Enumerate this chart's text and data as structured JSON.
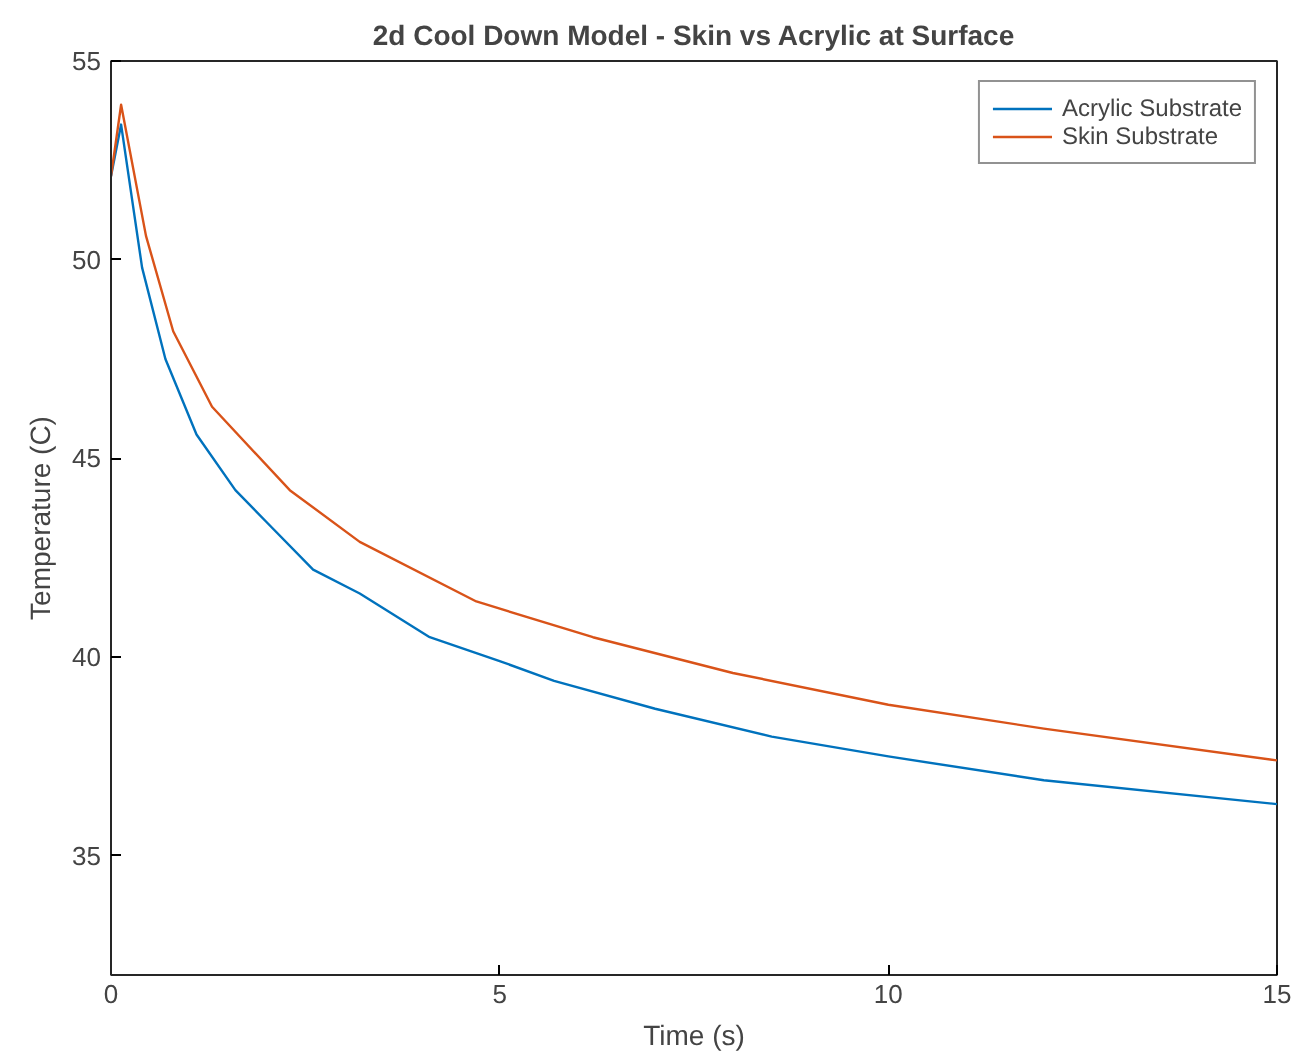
{
  "chart_data": {
    "type": "line",
    "title": "2d Cool Down Model - Skin vs Acrylic at Surface",
    "xlabel": "Time (s)",
    "ylabel": "Temperature (C)",
    "xlim": [
      0,
      15
    ],
    "ylim": [
      32,
      55
    ],
    "xticks": [
      0,
      5,
      10,
      15
    ],
    "yticks": [
      35,
      40,
      45,
      50,
      55
    ],
    "grid": false,
    "legend": "top right",
    "line_style": "solid",
    "marker": "none",
    "series": [
      {
        "name": "Acrylic Substrate",
        "color": "#0072bd",
        "x": [
          0,
          0.13,
          0.4,
          0.7,
          1.1,
          1.6,
          2.0,
          2.6,
          3.2,
          4.1,
          5,
          5.7,
          7,
          8.5,
          10,
          12,
          15
        ],
        "values": [
          52.1,
          53.4,
          49.8,
          47.5,
          45.6,
          44.2,
          43.4,
          42.2,
          41.6,
          40.5,
          39.9,
          39.4,
          38.7,
          38.0,
          37.5,
          36.9,
          36.3
        ]
      },
      {
        "name": "Skin Substrate",
        "color": "#d95319",
        "x": [
          0,
          0.13,
          0.45,
          0.8,
          1.3,
          2.3,
          3.2,
          4.7,
          6.2,
          8,
          10,
          12,
          15
        ],
        "values": [
          52.1,
          53.9,
          50.6,
          48.2,
          46.3,
          44.2,
          42.9,
          41.4,
          40.5,
          39.6,
          38.8,
          38.2,
          37.4
        ]
      }
    ]
  }
}
